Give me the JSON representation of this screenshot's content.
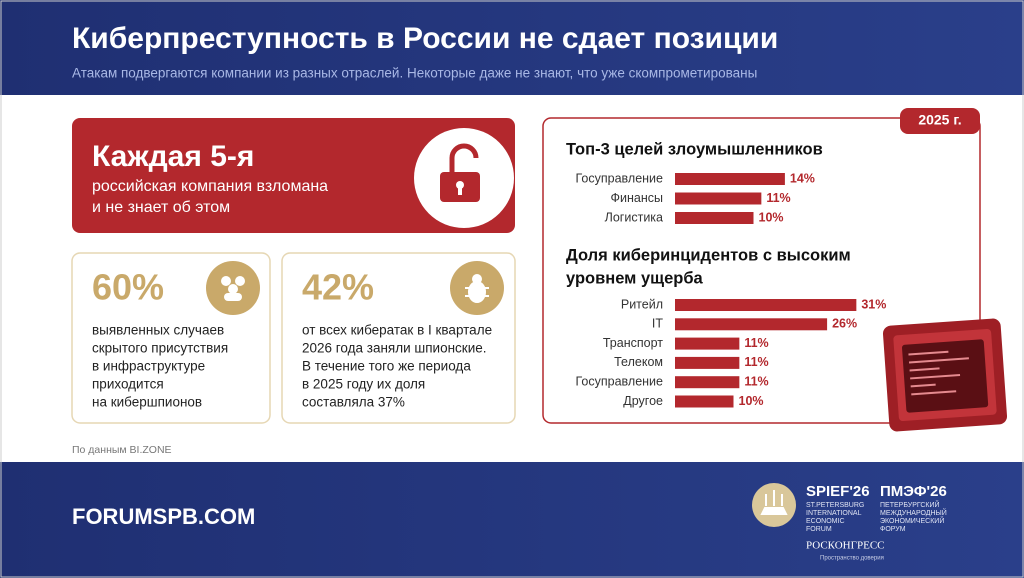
{
  "header": {
    "title": "Киберпреступность в России не сдает позиции",
    "subtitle": "Атакам подвергаются компании из разных отраслей. Некоторые даже не знают, что уже скомпрометированы"
  },
  "highlight": {
    "headline": "Каждая 5-я",
    "text_lines": [
      "российская компания взломана",
      "и не знает об этом"
    ]
  },
  "stats": [
    {
      "value_label": "60%",
      "text_lines": [
        "выявленных случаев",
        "скрытого присутствия",
        "в инфраструктуре",
        "приходится",
        "на кибершпионов"
      ]
    },
    {
      "value_label": "42%",
      "text_lines": [
        "от всех кибератак в I квартале",
        "2026 года заняли шпионские.",
        "В течение того же периода",
        "в 2025 году их доля",
        "составляла 37%"
      ]
    }
  ],
  "source": "По данным BI.ZONE",
  "badge": "2025 г.",
  "chart_data": [
    {
      "type": "bar",
      "orientation": "horizontal",
      "title_lines": [
        "Топ-3 целей злоумышленников"
      ],
      "categories": [
        "Госуправление",
        "Финансы",
        "Логистика"
      ],
      "values": [
        14,
        11,
        10
      ],
      "value_labels": [
        "14%",
        "11%",
        "10%"
      ],
      "color": "#b3282d"
    },
    {
      "type": "bar",
      "orientation": "horizontal",
      "title_lines": [
        "Доля киберинцидентов с высоким",
        "уровнем ущерба"
      ],
      "categories": [
        "Ритейл",
        "IT",
        "Транспорт",
        "Телеком",
        "Госуправление",
        "Другое"
      ],
      "values": [
        31,
        26,
        11,
        11,
        11,
        10
      ],
      "value_labels": [
        "31%",
        "26%",
        "11%",
        "11%",
        "11%",
        "10%"
      ],
      "color": "#b3282d"
    }
  ],
  "footer": {
    "site": "FORUMSPB.COM",
    "brand_en": "SPIEF'26",
    "brand_en_lines": [
      "ST.PETERSBURG",
      "INTERNATIONAL",
      "ECONOMIC",
      "FORUM"
    ],
    "brand_ru": "ПМЭФ'26",
    "brand_ru_lines": [
      "ПЕТЕРБУРГСКИЙ",
      "МЕЖДУНАРОДНЫЙ",
      "ЭКОНОМИЧЕСКИЙ",
      "ФОРУМ"
    ],
    "organizer": "РОСКОНГРЕСС",
    "organizer_tagline": "Пространство доверия"
  }
}
